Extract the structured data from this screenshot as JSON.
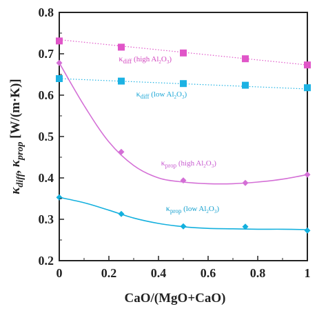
{
  "chart_data": {
    "type": "scatter",
    "xlabel": "CaO/(MgO+CaO)",
    "ylabel": {
      "symbol": "κ",
      "sub1": "diff",
      "sep": ", ",
      "sub2": "prop",
      "unit": " [W/(m·K)]"
    },
    "xlim": [
      0,
      1
    ],
    "ylim": [
      0.2,
      0.8
    ],
    "x_ticks": [
      0,
      0.2,
      0.4,
      0.6,
      0.8,
      1
    ],
    "x_tick_labels": [
      "0",
      "0.2",
      "0.4",
      "0.6",
      "0.8",
      "1"
    ],
    "y_ticks": [
      0.2,
      0.3,
      0.4,
      0.5,
      0.6,
      0.7,
      0.8
    ],
    "y_tick_labels": [
      "0.2",
      "0.3",
      "0.4",
      "0.5",
      "0.6",
      "0.7",
      "0.8"
    ],
    "grid": false,
    "series": [
      {
        "key": "kdiff_high",
        "marker": "square",
        "color": "#e055c8",
        "line_style": "dotted",
        "x": [
          0,
          0.25,
          0.5,
          0.75,
          1
        ],
        "y": [
          0.731,
          0.716,
          0.702,
          0.688,
          0.673
        ],
        "fit": [
          [
            0,
            0.734
          ],
          [
            1,
            0.673
          ]
        ]
      },
      {
        "key": "kdiff_low",
        "marker": "square",
        "color": "#1cb2e3",
        "line_style": "dotted",
        "x": [
          0,
          0.25,
          0.5,
          0.75,
          1
        ],
        "y": [
          0.64,
          0.634,
          0.628,
          0.624,
          0.618
        ],
        "fit": [
          [
            0,
            0.64
          ],
          [
            1,
            0.615
          ]
        ]
      },
      {
        "key": "kprop_high",
        "marker": "diamond",
        "color": "#d46fd6",
        "line_style": "solid",
        "x": [
          0,
          0.25,
          0.5,
          0.75,
          1
        ],
        "y": [
          0.678,
          0.463,
          0.394,
          0.388,
          0.408
        ],
        "fit": [
          [
            0,
            0.678
          ],
          [
            0.1,
            0.575
          ],
          [
            0.2,
            0.487
          ],
          [
            0.3,
            0.43
          ],
          [
            0.4,
            0.4
          ],
          [
            0.5,
            0.39
          ],
          [
            0.6,
            0.386
          ],
          [
            0.7,
            0.386
          ],
          [
            0.8,
            0.39
          ],
          [
            0.9,
            0.397
          ],
          [
            1,
            0.408
          ]
        ]
      },
      {
        "key": "kprop_low",
        "marker": "diamond",
        "color": "#13b0de",
        "line_style": "solid",
        "x": [
          0,
          0.25,
          0.5,
          0.75,
          1
        ],
        "y": [
          0.353,
          0.313,
          0.283,
          0.282,
          0.273
        ],
        "fit": [
          [
            0,
            0.353
          ],
          [
            0.1,
            0.34
          ],
          [
            0.2,
            0.322
          ],
          [
            0.3,
            0.303
          ],
          [
            0.4,
            0.29
          ],
          [
            0.5,
            0.282
          ],
          [
            0.6,
            0.278
          ],
          [
            0.7,
            0.277
          ],
          [
            0.8,
            0.276
          ],
          [
            0.9,
            0.276
          ],
          [
            1,
            0.275
          ]
        ]
      }
    ],
    "annotations": [
      {
        "key": "ann_kdiff_high",
        "sym": "κ",
        "sub": "diff",
        "rest": " (high Al",
        "chem": "2",
        "o": "O",
        "chem2": "3",
        "close": ")",
        "color": "#d246bf",
        "x": 0.24,
        "y": 0.682
      },
      {
        "key": "ann_kdiff_low",
        "sym": "κ",
        "sub": "diff",
        "rest": " (low Al",
        "chem": "2",
        "o": "O",
        "chem2": "3",
        "close": ")",
        "color": "#1aa6d6",
        "x": 0.31,
        "y": 0.597
      },
      {
        "key": "ann_kprop_high",
        "sym": "κ",
        "sub": "prop",
        "rest": " (high Al",
        "chem": "2",
        "o": "O",
        "chem2": "3",
        "close": ")",
        "color": "#c85bd0",
        "x": 0.41,
        "y": 0.43
      },
      {
        "key": "ann_kprop_low",
        "sym": "κ",
        "sub": "prop",
        "rest": " (low Al",
        "chem": "2",
        "o": "O",
        "chem2": "3",
        "close": ")",
        "color": "#129fce",
        "x": 0.43,
        "y": 0.32
      }
    ]
  }
}
